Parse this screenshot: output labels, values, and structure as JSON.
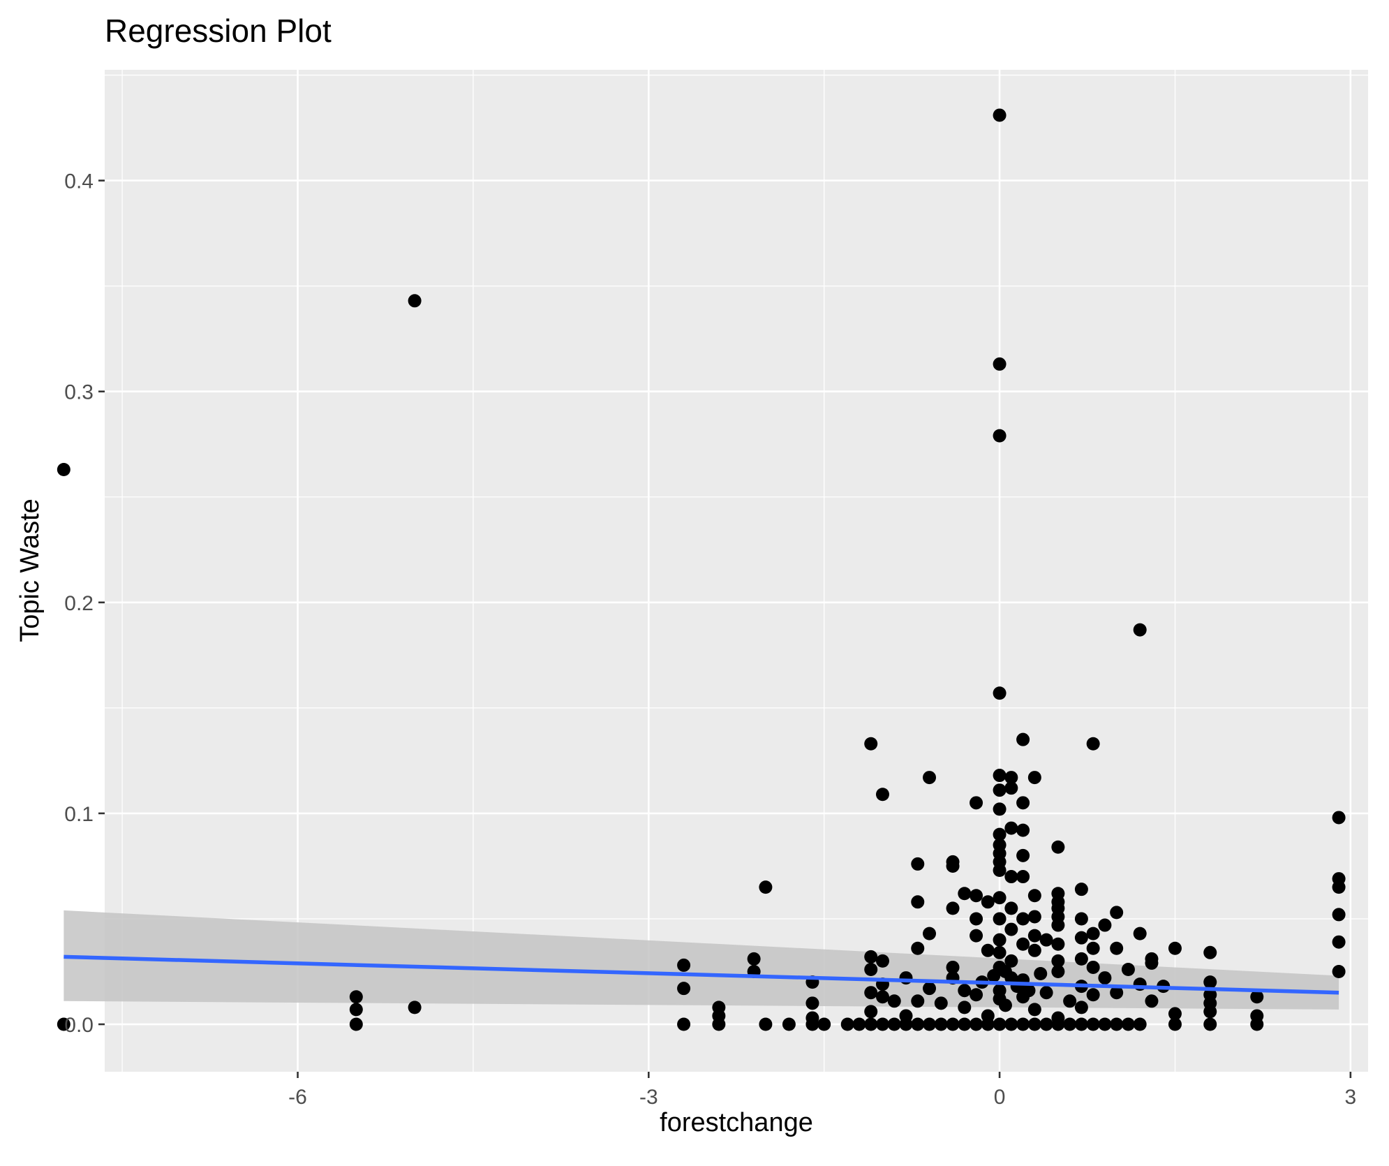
{
  "chart_data": {
    "type": "scatter",
    "title": "Regression Plot",
    "xlabel": "forestchange",
    "ylabel": "Topic Waste",
    "xlim": [
      -7.65,
      3.15
    ],
    "ylim": [
      -0.0225,
      0.4525
    ],
    "x_ticks": [
      -6,
      -3,
      0,
      3
    ],
    "x_tick_labels": [
      "-6",
      "-3",
      "0",
      "3"
    ],
    "y_ticks": [
      0.0,
      0.1,
      0.2,
      0.3,
      0.4
    ],
    "y_tick_labels": [
      "0.0",
      "0.1",
      "0.2",
      "0.3",
      "0.4"
    ],
    "grid": true,
    "colors": {
      "panel_background": "#ebebeb",
      "grid": "#ffffff",
      "points": "#000000",
      "fit_line": "#3366ff",
      "confidence_band": "#c4c4c4"
    },
    "fit": {
      "x_start": -8.0,
      "y_start": 0.032,
      "x_end": 2.9,
      "y_end": 0.015,
      "band_start": [
        0.011,
        0.054
      ],
      "band_end": [
        0.007,
        0.023
      ]
    },
    "points": [
      [
        -8.0,
        0.263
      ],
      [
        -8.0,
        0.0
      ],
      [
        -5.0,
        0.343
      ],
      [
        -5.0,
        0.008
      ],
      [
        -5.5,
        0.013
      ],
      [
        -5.5,
        0.007
      ],
      [
        -5.5,
        0.0
      ],
      [
        0.0,
        0.431
      ],
      [
        0.0,
        0.313
      ],
      [
        0.0,
        0.279
      ],
      [
        0.0,
        0.157
      ],
      [
        1.2,
        0.187
      ],
      [
        -1.1,
        0.133
      ],
      [
        0.8,
        0.133
      ],
      [
        0.2,
        0.135
      ],
      [
        0.0,
        0.118
      ],
      [
        0.1,
        0.117
      ],
      [
        0.3,
        0.117
      ],
      [
        -0.6,
        0.117
      ],
      [
        0.1,
        0.112
      ],
      [
        0.0,
        0.111
      ],
      [
        -1.0,
        0.109
      ],
      [
        -0.2,
        0.105
      ],
      [
        0.2,
        0.105
      ],
      [
        0.0,
        0.102
      ],
      [
        0.1,
        0.093
      ],
      [
        0.2,
        0.092
      ],
      [
        0.0,
        0.09
      ],
      [
        0.0,
        0.085
      ],
      [
        0.5,
        0.084
      ],
      [
        0.0,
        0.081
      ],
      [
        0.2,
        0.08
      ],
      [
        0.0,
        0.077
      ],
      [
        -0.7,
        0.076
      ],
      [
        -0.4,
        0.077
      ],
      [
        -0.4,
        0.075
      ],
      [
        0.0,
        0.073
      ],
      [
        0.1,
        0.07
      ],
      [
        0.2,
        0.07
      ],
      [
        -2.0,
        0.065
      ],
      [
        0.5,
        0.062
      ],
      [
        0.7,
        0.064
      ],
      [
        -0.3,
        0.062
      ],
      [
        -0.2,
        0.061
      ],
      [
        0.3,
        0.061
      ],
      [
        -0.7,
        0.058
      ],
      [
        0.5,
        0.058
      ],
      [
        -0.4,
        0.055
      ],
      [
        0.5,
        0.055
      ],
      [
        1.0,
        0.053
      ],
      [
        0.0,
        0.05
      ],
      [
        0.2,
        0.05
      ],
      [
        0.3,
        0.051
      ],
      [
        0.5,
        0.051
      ],
      [
        0.7,
        0.05
      ],
      [
        -0.2,
        0.05
      ],
      [
        0.9,
        0.047
      ],
      [
        0.5,
        0.047
      ],
      [
        0.1,
        0.045
      ],
      [
        -0.6,
        0.043
      ],
      [
        0.8,
        0.043
      ],
      [
        1.2,
        0.043
      ],
      [
        -0.2,
        0.042
      ],
      [
        0.3,
        0.042
      ],
      [
        0.4,
        0.04
      ],
      [
        0.0,
        0.04
      ],
      [
        0.7,
        0.041
      ],
      [
        0.5,
        0.038
      ],
      [
        0.2,
        0.038
      ],
      [
        -0.7,
        0.036
      ],
      [
        1.5,
        0.036
      ],
      [
        -0.1,
        0.035
      ],
      [
        0.0,
        0.034
      ],
      [
        1.8,
        0.034
      ],
      [
        0.3,
        0.035
      ],
      [
        0.8,
        0.036
      ],
      [
        1.0,
        0.036
      ],
      [
        -1.1,
        0.032
      ],
      [
        -2.1,
        0.031
      ],
      [
        1.3,
        0.031
      ],
      [
        0.7,
        0.031
      ],
      [
        0.5,
        0.03
      ],
      [
        -1.0,
        0.03
      ],
      [
        1.3,
        0.029
      ],
      [
        0.1,
        0.03
      ],
      [
        -2.7,
        0.028
      ],
      [
        -1.1,
        0.026
      ],
      [
        -0.4,
        0.027
      ],
      [
        0.8,
        0.027
      ],
      [
        1.1,
        0.026
      ],
      [
        -2.1,
        0.025
      ],
      [
        0.5,
        0.025
      ],
      [
        2.9,
        0.025
      ],
      [
        -0.8,
        0.022
      ],
      [
        -0.4,
        0.022
      ],
      [
        0.9,
        0.022
      ],
      [
        0.2,
        0.021
      ],
      [
        -1.6,
        0.02
      ],
      [
        1.8,
        0.02
      ],
      [
        -1.0,
        0.019
      ],
      [
        1.2,
        0.019
      ],
      [
        0.7,
        0.018
      ],
      [
        -2.7,
        0.017
      ],
      [
        1.4,
        0.018
      ],
      [
        -0.6,
        0.017
      ],
      [
        0.0,
        0.016
      ],
      [
        -1.1,
        0.015
      ],
      [
        0.4,
        0.015
      ],
      [
        0.8,
        0.014
      ],
      [
        1.0,
        0.015
      ],
      [
        1.8,
        0.014
      ],
      [
        2.2,
        0.013
      ],
      [
        -1.0,
        0.013
      ],
      [
        0.2,
        0.013
      ],
      [
        -0.7,
        0.011
      ],
      [
        -0.9,
        0.011
      ],
      [
        1.3,
        0.011
      ],
      [
        0.6,
        0.011
      ],
      [
        -1.6,
        0.01
      ],
      [
        -0.5,
        0.01
      ],
      [
        1.8,
        0.01
      ],
      [
        -2.4,
        0.008
      ],
      [
        -0.3,
        0.008
      ],
      [
        0.7,
        0.008
      ],
      [
        0.3,
        0.007
      ],
      [
        -1.1,
        0.006
      ],
      [
        1.8,
        0.006
      ],
      [
        1.5,
        0.005
      ],
      [
        -2.4,
        0.004
      ],
      [
        2.2,
        0.004
      ],
      [
        -1.6,
        0.003
      ],
      [
        -0.8,
        0.004
      ],
      [
        -0.1,
        0.004
      ],
      [
        0.5,
        0.003
      ],
      [
        -2.7,
        0.0
      ],
      [
        -2.4,
        0.0
      ],
      [
        -2.0,
        0.0
      ],
      [
        -1.8,
        0.0
      ],
      [
        -1.6,
        0.0
      ],
      [
        -1.5,
        0.0
      ],
      [
        -1.3,
        0.0
      ],
      [
        -1.2,
        0.0
      ],
      [
        -1.1,
        0.0
      ],
      [
        -1.0,
        0.0
      ],
      [
        -0.9,
        0.0
      ],
      [
        -0.8,
        0.0
      ],
      [
        -0.7,
        0.0
      ],
      [
        -0.6,
        0.0
      ],
      [
        -0.5,
        0.0
      ],
      [
        -0.4,
        0.0
      ],
      [
        -0.3,
        0.0
      ],
      [
        -0.2,
        0.0
      ],
      [
        -0.1,
        0.0
      ],
      [
        0.0,
        0.0
      ],
      [
        0.1,
        0.0
      ],
      [
        0.2,
        0.0
      ],
      [
        0.3,
        0.0
      ],
      [
        0.4,
        0.0
      ],
      [
        0.5,
        0.0
      ],
      [
        0.6,
        0.0
      ],
      [
        0.7,
        0.0
      ],
      [
        0.8,
        0.0
      ],
      [
        0.9,
        0.0
      ],
      [
        1.0,
        0.0
      ],
      [
        1.1,
        0.0
      ],
      [
        1.2,
        0.0
      ],
      [
        1.5,
        0.0
      ],
      [
        1.8,
        0.0
      ],
      [
        2.2,
        0.0
      ],
      [
        2.9,
        0.098
      ],
      [
        2.9,
        0.069
      ],
      [
        2.9,
        0.065
      ],
      [
        2.9,
        0.052
      ],
      [
        2.9,
        0.039
      ],
      [
        0.0,
        0.06
      ],
      [
        0.1,
        0.055
      ],
      [
        -0.1,
        0.058
      ],
      [
        0.0,
        0.027
      ],
      [
        0.05,
        0.025
      ],
      [
        -0.05,
        0.023
      ],
      [
        0.1,
        0.022
      ],
      [
        0.15,
        0.018
      ],
      [
        -0.15,
        0.02
      ],
      [
        0.25,
        0.016
      ],
      [
        0.0,
        0.012
      ],
      [
        -0.2,
        0.014
      ],
      [
        0.35,
        0.024
      ],
      [
        0.05,
        0.009
      ],
      [
        -0.3,
        0.016
      ]
    ]
  }
}
